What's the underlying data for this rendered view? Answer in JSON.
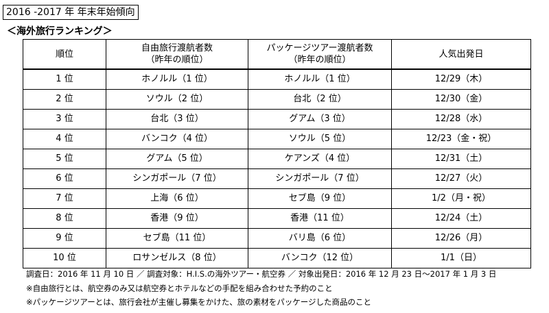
{
  "title": "2016 -2017 年  年末年始傾向",
  "subtitle": "＜海外旅行ランキング＞",
  "table": {
    "headers": {
      "rank": "順位",
      "free_line1": "自由旅行渡航者数",
      "free_line2": "（昨年の順位）",
      "package_line1": "パッケージツアー渡航者数",
      "package_line2": "（昨年の順位）",
      "date": "人気出発日"
    },
    "rows": [
      {
        "rank": "1 位",
        "free": "ホノルル（1 位）",
        "package": "ホノルル（1 位）",
        "date": "12/29（木）"
      },
      {
        "rank": "2 位",
        "free": "ソウル（2 位）",
        "package": "台北（2 位）",
        "date": "12/30（金）"
      },
      {
        "rank": "3 位",
        "free": "台北（3 位）",
        "package": "グアム（3 位）",
        "date": "12/28（水）"
      },
      {
        "rank": "4 位",
        "free": "バンコク（4 位）",
        "package": "ソウル（5 位）",
        "date": "12/23（金・祝）"
      },
      {
        "rank": "5 位",
        "free": "グアム（5 位）",
        "package": "ケアンズ（4 位）",
        "date": "12/31（土）"
      },
      {
        "rank": "6 位",
        "free": "シンガポール（7 位）",
        "package": "シンガポール（7 位）",
        "date": "12/27（火）"
      },
      {
        "rank": "7 位",
        "free": "上海（6 位）",
        "package": "セブ島（9 位）",
        "date": "1/2（月・祝）"
      },
      {
        "rank": "8 位",
        "free": "香港（9 位）",
        "package": "香港（11 位）",
        "date": "12/24（土）"
      },
      {
        "rank": "9 位",
        "free": "セブ島（11 位）",
        "package": "バリ島（6 位）",
        "date": "12/26（月）"
      },
      {
        "rank": "10 位",
        "free": "ロサンゼルス（8 位）",
        "package": "バンコク（12 位）",
        "date": "1/1（日）"
      }
    ]
  },
  "notes": [
    "調査日：2016 年 11 月 10 日 ／ 調査対象：H.I.S.の海外ツアー・航空券 ／ 対象出発日：2016 年 12 月 23 日～2017 年 1 月 3 日",
    "※自由旅行とは、航空券のみ又は航空券とホテルなどの手配を組み合わせた予約のこと",
    "※パッケージツアーとは、旅行会社が主催し募集をかけた、旅の素材をパッケージした商品のこと"
  ]
}
